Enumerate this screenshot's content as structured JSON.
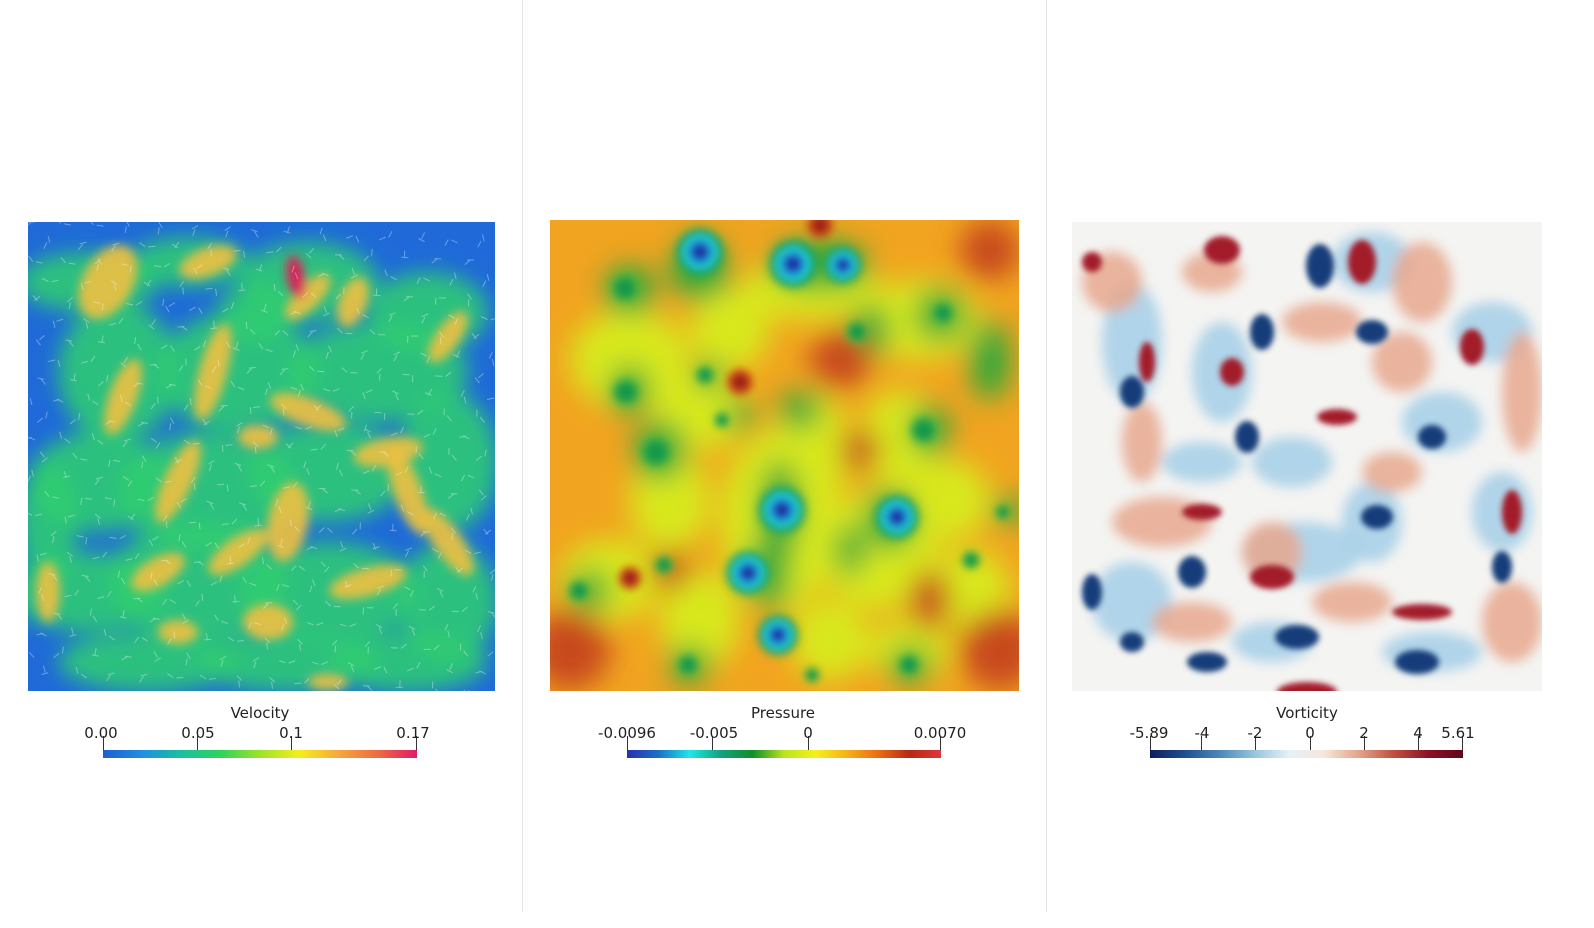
{
  "panels": [
    {
      "id": "velocity",
      "legend_title": "Velocity",
      "ticks": [
        "0.00",
        "0.05",
        "0.1",
        "0.17"
      ],
      "colormap": [
        "#1d5fd1",
        "#1f8fe0",
        "#19c0a0",
        "#2fd35a",
        "#9ee22a",
        "#f3ef1c",
        "#f6a83a",
        "#ee6b42",
        "#e01a6a"
      ]
    },
    {
      "id": "pressure",
      "legend_title": "Pressure",
      "ticks": [
        "-0.0096",
        "-0.005",
        "0",
        "0.0070"
      ],
      "colormap": [
        "#2a2eb0",
        "#1a70c8",
        "#1fe6e8",
        "#12a27a",
        "#0f8f2c",
        "#b9e41c",
        "#f6f01a",
        "#f6b21a",
        "#ec6b16",
        "#b52a14",
        "#e0363a"
      ]
    },
    {
      "id": "vorticity",
      "legend_title": "Vorticity",
      "ticks": [
        "-5.89",
        "-4",
        "-2",
        "0",
        "2",
        "4",
        "5.61"
      ],
      "colormap": [
        "#0b1f5a",
        "#1f4f8f",
        "#4c86b8",
        "#98c4df",
        "#e6f1f7",
        "#f7e6dc",
        "#e3a589",
        "#c0503f",
        "#8c1127",
        "#5e0718"
      ]
    }
  ]
}
